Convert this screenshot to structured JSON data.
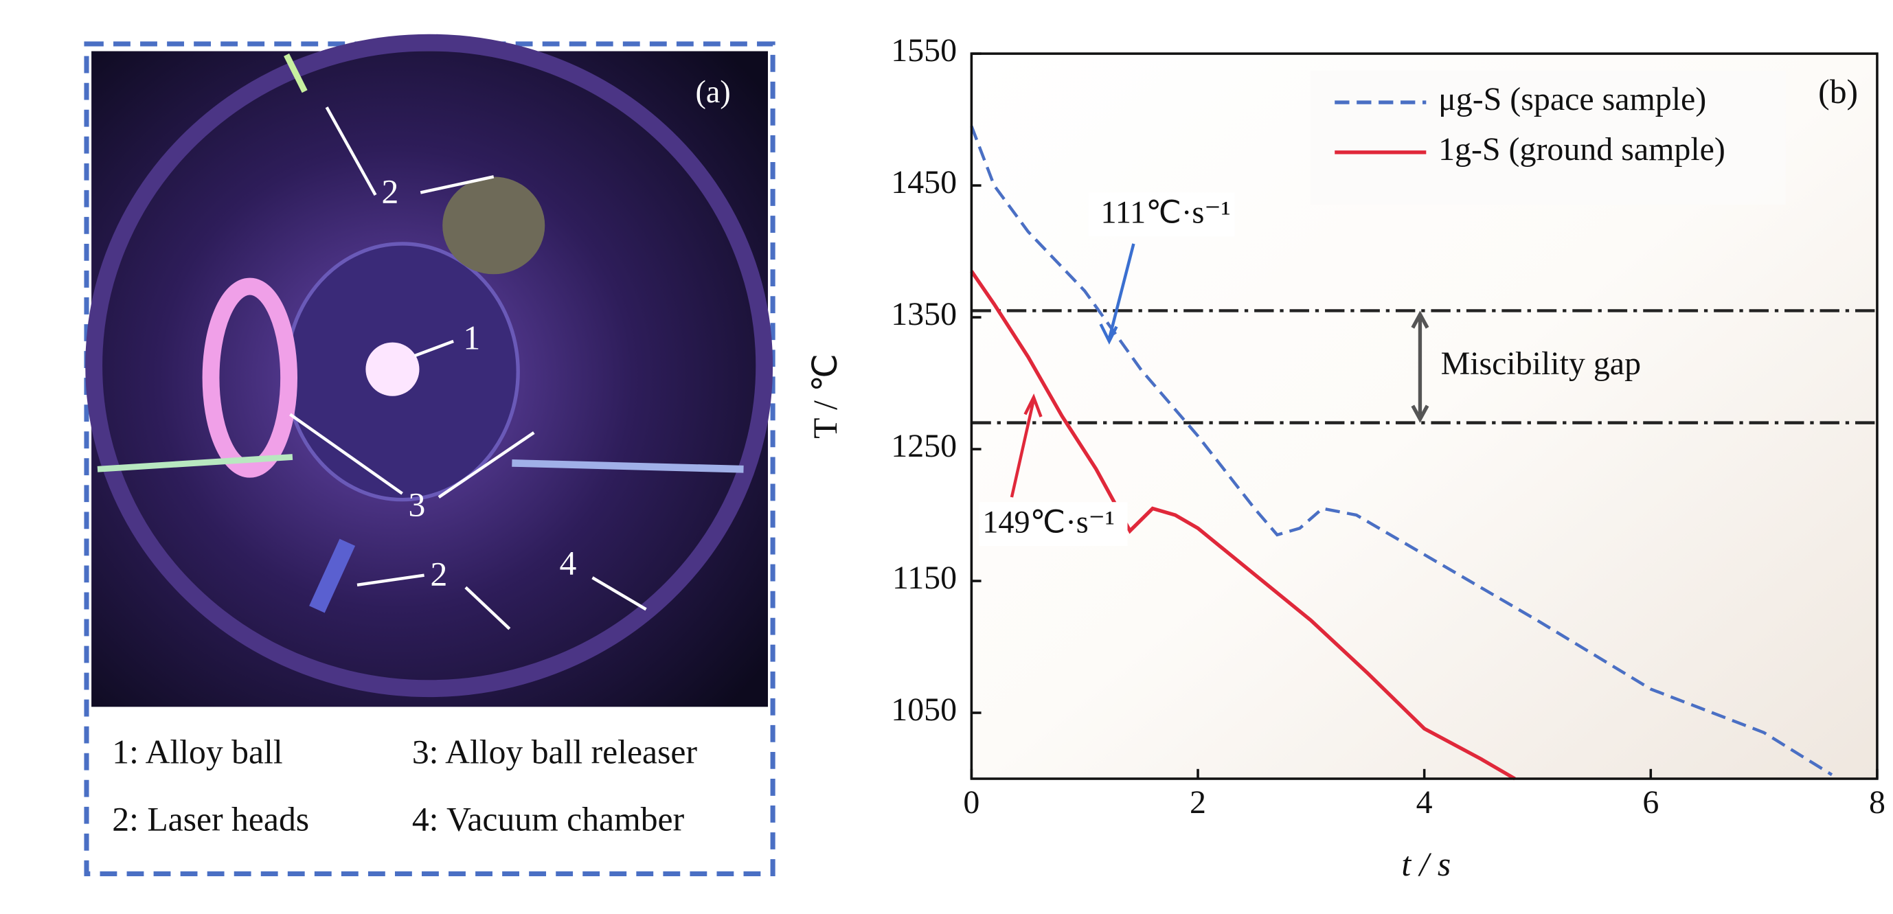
{
  "panel_a": {
    "label": "(a)",
    "callouts": [
      "2",
      "1",
      "3",
      "2",
      "4"
    ],
    "legend": [
      "1: Alloy ball",
      "3: Alloy ball releaser",
      "2: Laser heads",
      "4: Vacuum chamber"
    ]
  },
  "chart_data": {
    "type": "line",
    "panel_label": "(b)",
    "x_label": "t / s",
    "y_label": "T / ℃",
    "xlim": [
      0,
      8
    ],
    "xticks": [
      0,
      2,
      4,
      6,
      8
    ],
    "ylim": [
      1000,
      1550
    ],
    "yticks": [
      1050,
      1150,
      1250,
      1350,
      1450,
      1550
    ],
    "legend_position": "top-right",
    "series": [
      {
        "name": "μg-S (space sample)",
        "color": "#4a6fc4",
        "dash": true,
        "x": [
          0,
          0.2,
          0.5,
          1,
          1.5,
          2,
          2.5,
          2.7,
          2.9,
          3.1,
          3.4,
          4,
          5,
          6,
          7,
          7.6
        ],
        "values": [
          1495,
          1450,
          1415,
          1370,
          1310,
          1260,
          1205,
          1185,
          1190,
          1205,
          1200,
          1170,
          1120,
          1068,
          1035,
          1003
        ]
      },
      {
        "name": "1g-S (ground sample)",
        "color": "#e0283a",
        "dash": false,
        "x": [
          0,
          0.2,
          0.5,
          0.8,
          1.1,
          1.4,
          1.6,
          1.8,
          2,
          2.5,
          3,
          3.5,
          4,
          4.5,
          4.8
        ],
        "values": [
          1385,
          1360,
          1320,
          1275,
          1235,
          1188,
          1205,
          1200,
          1190,
          1155,
          1120,
          1080,
          1038,
          1015,
          1000
        ]
      }
    ],
    "hlines": [
      1355,
      1270
    ],
    "annotations": [
      "111℃·s⁻¹",
      "149℃·s⁻¹",
      "Miscibility gap"
    ]
  }
}
